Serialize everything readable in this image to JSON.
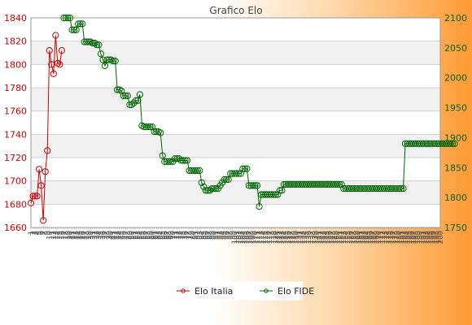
{
  "chart_data": {
    "type": "line",
    "title": "Grafico Elo",
    "left_axis": {
      "ylim": [
        1660,
        1840
      ],
      "ticks": [
        1660,
        1680,
        1700,
        1720,
        1740,
        1760,
        1780,
        1800,
        1820,
        1840
      ],
      "color": "#cc0000"
    },
    "right_axis": {
      "ylim": [
        1750,
        2100
      ],
      "ticks": [
        1750,
        1800,
        1850,
        1900,
        1950,
        2000,
        2050,
        2100
      ],
      "color": "#006600"
    },
    "grid": true,
    "legend_position": "bottom-center",
    "x_tick_labels": [
      "1",
      "2",
      "3",
      "4",
      "5",
      "6",
      "7",
      "8",
      "9",
      "10",
      "11",
      "12",
      "13",
      "14",
      "15",
      "16",
      "17",
      "18",
      "19",
      "20",
      "21",
      "22",
      "23",
      "24",
      "25",
      "26",
      "27",
      "28",
      "29",
      "30",
      "31",
      "32",
      "33",
      "34",
      "35",
      "36",
      "37",
      "38",
      "39",
      "40",
      "41",
      "42",
      "43",
      "44",
      "45",
      "46",
      "47",
      "48",
      "49",
      "50",
      "51",
      "52",
      "53",
      "54",
      "55",
      "56",
      "57",
      "58",
      "59",
      "60",
      "61",
      "62",
      "63",
      "64",
      "65",
      "66",
      "67",
      "68",
      "69",
      "70",
      "71",
      "72",
      "73",
      "74",
      "75",
      "76",
      "77",
      "78",
      "79",
      "80",
      "81",
      "82",
      "83",
      "84",
      "85",
      "86",
      "87",
      "88",
      "89",
      "90",
      "91",
      "92",
      "93",
      "94",
      "95",
      "96",
      "97",
      "98",
      "99",
      "100",
      "101",
      "102",
      "103",
      "104",
      "105",
      "106",
      "107",
      "108",
      "109",
      "110",
      "111",
      "112",
      "113",
      "114",
      "115",
      "116",
      "117",
      "118",
      "119",
      "120",
      "121",
      "122",
      "123",
      "124",
      "125",
      "126",
      "127",
      "128",
      "129",
      "130",
      "131",
      "132",
      "133",
      "134",
      "135",
      "136",
      "137",
      "138",
      "139",
      "140",
      "141",
      "142",
      "143",
      "144",
      "145",
      "146",
      "147",
      "148",
      "149",
      "150",
      "151",
      "152",
      "153",
      "154",
      "155",
      "156",
      "157",
      "158",
      "159",
      "160",
      "161",
      "162",
      "163",
      "164",
      "165",
      "166",
      "167",
      "168",
      "169",
      "170",
      "171",
      "172",
      "173",
      "174",
      "175",
      "176",
      "177",
      "178",
      "179",
      "180",
      "181",
      "182",
      "183",
      "184",
      "185",
      "186",
      "187",
      "188",
      "189",
      "190",
      "191",
      "192",
      "193",
      "194",
      "195",
      "196",
      "197",
      "198",
      "199",
      "200"
    ],
    "series": [
      {
        "name": "Elo Italia",
        "axis": "left",
        "color": "#cc0000",
        "x_start": 1,
        "values": [
          1681,
          1687,
          1687,
          1687,
          1710,
          1696,
          1666,
          1708,
          1726,
          1812,
          1800,
          1792,
          1825,
          1801,
          1800,
          1812
        ]
      },
      {
        "name": "Elo FIDE",
        "axis": "right",
        "color": "#006600",
        "x_start": 17,
        "values": [
          2100,
          2100,
          2100,
          2100,
          2080,
          2080,
          2080,
          2090,
          2090,
          2090,
          2060,
          2060,
          2060,
          2060,
          2058,
          2058,
          2055,
          2055,
          2040,
          2030,
          2020,
          2030,
          2030,
          2030,
          2028,
          2028,
          1980,
          1980,
          1978,
          1970,
          1970,
          1970,
          1955,
          1955,
          1958,
          1962,
          1962,
          1972,
          1920,
          1918,
          1918,
          1918,
          1918,
          1918,
          1910,
          1910,
          1910,
          1908,
          1870,
          1860,
          1860,
          1860,
          1860,
          1860,
          1865,
          1865,
          1865,
          1862,
          1862,
          1862,
          1862,
          1845,
          1845,
          1845,
          1845,
          1845,
          1845,
          1825,
          1818,
          1812,
          1812,
          1812,
          1815,
          1815,
          1815,
          1815,
          1820,
          1825,
          1830,
          1830,
          1830,
          1840,
          1840,
          1840,
          1840,
          1840,
          1840,
          1848,
          1848,
          1848,
          1820,
          1820,
          1820,
          1820,
          1820,
          1785,
          1805,
          1805,
          1805,
          1805,
          1805,
          1805,
          1805,
          1805,
          1805,
          1812,
          1812,
          1822,
          1822,
          1822,
          1822,
          1822,
          1822,
          1822,
          1822,
          1822,
          1822,
          1822,
          1822,
          1822,
          1822,
          1822,
          1822,
          1822,
          1822,
          1822,
          1822,
          1822,
          1822,
          1822,
          1822,
          1822,
          1822,
          1822,
          1822,
          1822,
          1815,
          1815,
          1815,
          1815,
          1815,
          1815,
          1815,
          1815,
          1815,
          1815,
          1815,
          1815,
          1815,
          1815,
          1815,
          1815,
          1815,
          1815,
          1815,
          1815,
          1815,
          1815,
          1815,
          1815,
          1815,
          1815,
          1815,
          1815,
          1815,
          1815,
          1890,
          1890,
          1890,
          1890,
          1890,
          1890,
          1890,
          1890,
          1890,
          1890,
          1890,
          1890,
          1890,
          1890,
          1890,
          1890,
          1890,
          1890,
          1890,
          1890,
          1890,
          1890,
          1890,
          1890,
          1890
        ]
      }
    ]
  }
}
